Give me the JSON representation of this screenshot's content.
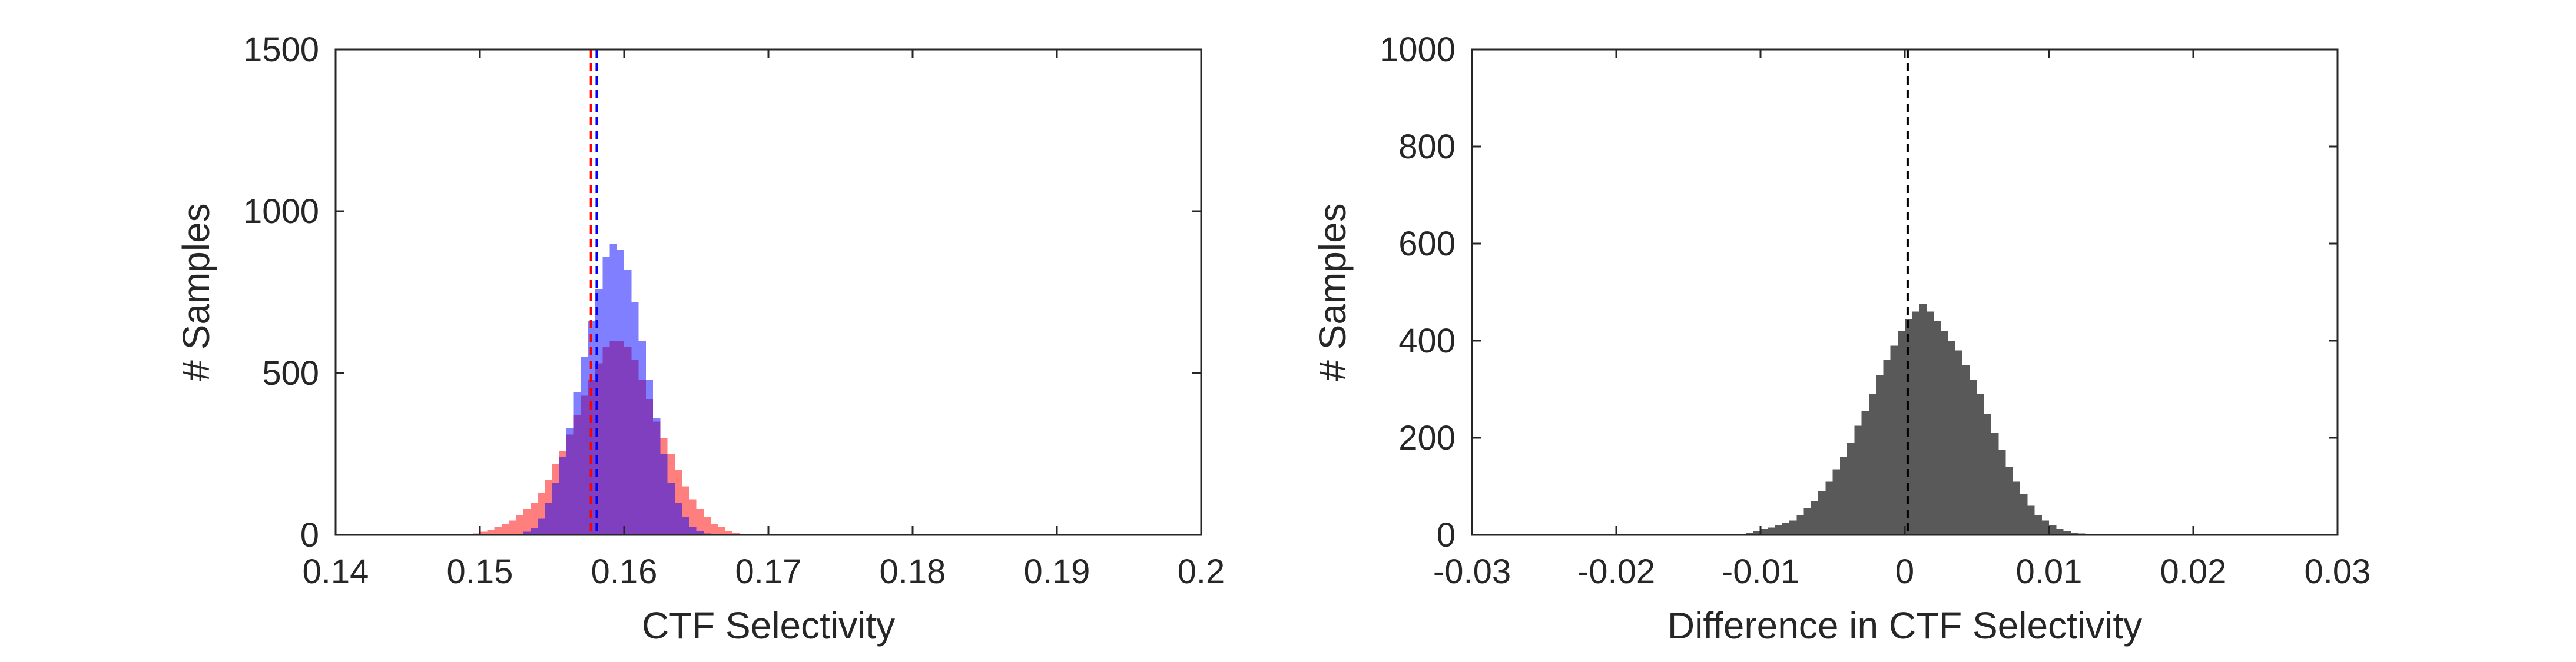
{
  "chart_data": [
    {
      "type": "histogram",
      "xlabel": "CTF Selectivity",
      "ylabel": "# Samples",
      "xlim": [
        0.14,
        0.2
      ],
      "ylim": [
        0,
        1500
      ],
      "xticks": [
        0.14,
        0.15,
        0.16,
        0.17,
        0.18,
        0.19,
        0.2
      ],
      "xtick_labels": [
        "0.14",
        "0.15",
        "0.16",
        "0.17",
        "0.18",
        "0.19",
        "0.2"
      ],
      "yticks": [
        0,
        500,
        1000,
        1500
      ],
      "ytick_labels": [
        "0",
        "500",
        "1000",
        "1500"
      ],
      "box": true,
      "grid": false,
      "bin_width": 0.0005,
      "series": [
        {
          "color": "#ff7f7f",
          "bin_start": 0.149,
          "counts": [
            3,
            5,
            10,
            15,
            25,
            35,
            45,
            60,
            80,
            100,
            130,
            170,
            220,
            260,
            310,
            370,
            430,
            480,
            530,
            580,
            600,
            600,
            580,
            540,
            480,
            420,
            350,
            300,
            250,
            200,
            150,
            110,
            80,
            55,
            35,
            25,
            12,
            7
          ]
        },
        {
          "color": "#7f7fff",
          "bin_start": 0.1525,
          "counts": [
            3,
            10,
            20,
            50,
            100,
            160,
            240,
            330,
            440,
            550,
            660,
            760,
            860,
            900,
            880,
            820,
            720,
            600,
            480,
            360,
            250,
            160,
            100,
            55,
            25,
            12,
            5
          ]
        }
      ],
      "overlap_color": "#7f3fbf",
      "reference_lines": [
        {
          "x": 0.1577,
          "color": "#ff0000",
          "style": "dashed"
        },
        {
          "x": 0.1581,
          "color": "#0000ff",
          "style": "dashed"
        }
      ]
    },
    {
      "type": "histogram",
      "xlabel": "Difference in CTF Selectivity",
      "ylabel": "# Samples",
      "xlim": [
        -0.03,
        0.03
      ],
      "ylim": [
        0,
        1000
      ],
      "xticks": [
        -0.03,
        -0.02,
        -0.01,
        0,
        0.01,
        0.02,
        0.03
      ],
      "xtick_labels": [
        "-0.03",
        "-0.02",
        "-0.01",
        "0",
        "0.01",
        "0.02",
        "0.03"
      ],
      "yticks": [
        0,
        200,
        400,
        600,
        800,
        1000
      ],
      "ytick_labels": [
        "0",
        "200",
        "400",
        "600",
        "800",
        "1000"
      ],
      "box": true,
      "grid": false,
      "bin_width": 0.0005,
      "series": [
        {
          "color": "#595959",
          "bin_start": -0.0115,
          "counts": [
            2,
            5,
            8,
            12,
            15,
            20,
            25,
            30,
            40,
            55,
            70,
            90,
            110,
            135,
            160,
            190,
            225,
            255,
            290,
            330,
            360,
            390,
            420,
            445,
            460,
            475,
            460,
            440,
            420,
            400,
            380,
            350,
            320,
            290,
            250,
            210,
            175,
            140,
            110,
            85,
            60,
            40,
            30,
            20,
            12,
            8,
            5,
            3
          ]
        }
      ],
      "reference_lines": [
        {
          "x": 0.0002,
          "color": "#000000",
          "style": "dashed"
        }
      ]
    }
  ]
}
